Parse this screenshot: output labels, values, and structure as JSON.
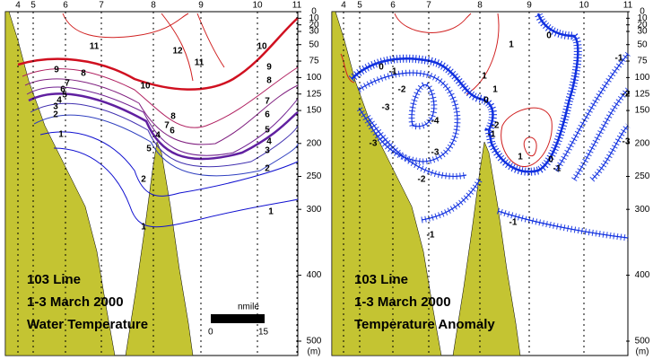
{
  "panels": [
    {
      "stations": [
        "4",
        "5",
        "6",
        "7",
        "8",
        "9",
        "10",
        "11"
      ],
      "depth_ticks": [
        0,
        10,
        20,
        30,
        50,
        75,
        100,
        125,
        150,
        200,
        250,
        300,
        400,
        500
      ],
      "depth_unit": "(m)",
      "title_lines": [
        "103 Line",
        "1-3 March 2000",
        "Water Temperature"
      ],
      "scale": {
        "unit": "nmile",
        "start": "0",
        "end": "15"
      },
      "contour_labels": [
        "11",
        "12",
        "11",
        "10",
        "9",
        "8",
        "7",
        "6",
        "5",
        "4",
        "3",
        "2",
        "1",
        "10",
        "9",
        "8",
        "7",
        "6",
        "5",
        "4",
        "3",
        "2",
        "1",
        "8",
        "7",
        "6",
        "5",
        "4",
        "2",
        "1"
      ]
    },
    {
      "stations": [
        "4",
        "5",
        "6",
        "7",
        "8",
        "9",
        "10",
        "11"
      ],
      "depth_ticks": [
        0,
        10,
        20,
        30,
        50,
        75,
        100,
        125,
        150,
        200,
        250,
        300,
        400,
        500
      ],
      "depth_unit": "(m)",
      "title_lines": [
        "103 Line",
        "1-3 March 2000",
        "Temperature Anomaly"
      ],
      "contour_labels": [
        "1",
        "1",
        "0",
        "0",
        "-1",
        "-2",
        "-3",
        "-1",
        "-2",
        "-3",
        "-4",
        "-3",
        "-2",
        "1",
        "0",
        "-1",
        "-2",
        "1",
        "0",
        "-1",
        "-1",
        "-1",
        "-3"
      ]
    }
  ]
}
